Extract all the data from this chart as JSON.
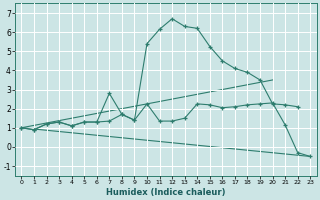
{
  "xlabel": "Humidex (Indice chaleur)",
  "background_color": "#cce5e5",
  "grid_color": "#ffffff",
  "line_color": "#2e7d6e",
  "xlim": [
    -0.5,
    23.5
  ],
  "ylim": [
    -1.5,
    7.5
  ],
  "xticks": [
    0,
    1,
    2,
    3,
    4,
    5,
    6,
    7,
    8,
    9,
    10,
    11,
    12,
    13,
    14,
    15,
    16,
    17,
    18,
    19,
    20,
    21,
    22,
    23
  ],
  "yticks": [
    -1,
    0,
    1,
    2,
    3,
    4,
    5,
    6,
    7
  ],
  "series_upper": {
    "x": [
      0,
      1,
      2,
      3,
      4,
      5,
      6,
      7,
      8,
      9,
      10,
      11,
      12,
      13,
      14,
      15,
      16,
      17,
      18,
      19,
      20,
      21,
      22
    ],
    "y": [
      1.0,
      0.9,
      1.2,
      1.3,
      1.1,
      1.3,
      1.3,
      2.8,
      1.7,
      1.4,
      5.4,
      6.15,
      6.7,
      6.3,
      6.2,
      5.25,
      4.5,
      4.1,
      3.9,
      3.5,
      2.25,
      2.2,
      2.1
    ]
  },
  "series_lower": {
    "x": [
      0,
      1,
      2,
      3,
      4,
      5,
      6,
      7,
      8,
      9,
      10,
      11,
      12,
      13,
      14,
      15,
      16,
      17,
      18,
      19,
      20,
      21,
      22,
      23
    ],
    "y": [
      1.0,
      0.9,
      1.2,
      1.3,
      1.1,
      1.3,
      1.3,
      1.35,
      1.7,
      1.4,
      2.25,
      1.35,
      1.35,
      1.5,
      2.25,
      2.2,
      2.05,
      2.1,
      2.2,
      2.25,
      2.3,
      1.15,
      -0.3,
      -0.5
    ]
  },
  "line_upper": {
    "x": [
      0,
      20
    ],
    "y": [
      1.0,
      3.5
    ]
  },
  "line_lower": {
    "x": [
      0,
      23
    ],
    "y": [
      1.0,
      -0.5
    ]
  }
}
